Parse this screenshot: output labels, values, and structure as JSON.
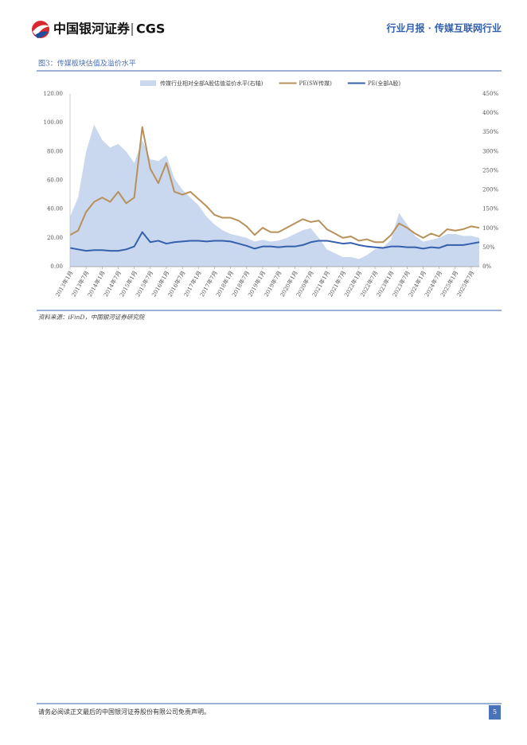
{
  "header": {
    "logo_cn": "中国银河证券",
    "logo_en": "CGS",
    "title": "行业月报 · 传媒互联网行业"
  },
  "figure": {
    "caption": "图3：传媒板块估值及溢价水平",
    "source": "资料来源：iFinD，中国银河证券研究院"
  },
  "chart_data": {
    "type": "line",
    "categories": [
      "2013年1月",
      null,
      "2013年7月",
      null,
      "2014年1月",
      null,
      "2014年7月",
      null,
      "2015年1月",
      null,
      "2015年7月",
      null,
      "2016年1月",
      null,
      "2016年7月",
      null,
      "2017年1月",
      null,
      "2017年7月",
      null,
      "2018年1月",
      null,
      "2018年7月",
      null,
      "2019年1月",
      null,
      "2019年7月",
      null,
      "2020年1月",
      null,
      "2020年7月",
      null,
      "2021年1月",
      null,
      "2021年7月",
      null,
      "2022年1月",
      null,
      "2022年7月",
      null,
      "2023年1月",
      null,
      "2023年7月",
      null,
      "2024年1月",
      null,
      "2024年7月",
      null,
      "2025年1月",
      null,
      "2025年7月",
      null
    ],
    "series": [
      {
        "name": "传媒行业相对全部A股估值溢价水平(右轴)",
        "color": "#c9d7ef",
        "axis": "y2",
        "kind": "area",
        "values": [
          130,
          180,
          300,
          370,
          330,
          310,
          320,
          300,
          270,
          330,
          280,
          275,
          290,
          230,
          200,
          180,
          160,
          130,
          110,
          95,
          85,
          80,
          75,
          65,
          70,
          65,
          68,
          75,
          85,
          95,
          100,
          75,
          45,
          35,
          25,
          25,
          20,
          30,
          45,
          50,
          70,
          140,
          110,
          80,
          65,
          70,
          75,
          85,
          85,
          80,
          80,
          75
        ]
      },
      {
        "name": "PE(SW传媒)",
        "color": "#b8915a",
        "values": [
          22,
          25,
          38,
          45,
          48,
          45,
          52,
          44,
          48,
          97,
          68,
          58,
          72,
          52,
          50,
          52,
          47,
          42,
          36,
          34,
          34,
          32,
          28,
          22,
          27,
          24,
          24,
          27,
          30,
          33,
          31,
          32,
          26,
          23,
          20,
          21,
          18,
          19,
          17,
          17,
          22,
          30,
          27,
          23,
          20,
          23,
          21,
          26,
          25,
          26,
          28,
          27
        ]
      },
      {
        "name": "PE(全部A股)",
        "color": "#3560ad",
        "values": [
          13,
          12,
          11,
          11.5,
          11.5,
          11,
          11,
          12,
          14,
          24,
          17,
          18,
          16,
          17,
          17.5,
          18,
          18,
          17.5,
          18,
          18,
          17.5,
          16,
          14.5,
          12.5,
          14,
          14,
          13.5,
          14,
          14,
          15,
          17,
          18,
          18,
          17,
          16,
          16.5,
          15,
          14,
          13.5,
          13,
          14,
          14,
          13.5,
          13.5,
          12.5,
          13.5,
          13,
          15,
          15,
          15,
          16,
          17
        ]
      }
    ],
    "ylim": [
      0,
      120
    ],
    "yticks": [
      {
        "value": 0,
        "label": "0.00"
      },
      {
        "value": 20,
        "label": "20.00"
      },
      {
        "value": 40,
        "label": "40.00"
      },
      {
        "value": 60,
        "label": "60.00"
      },
      {
        "value": 80,
        "label": "80.00"
      },
      {
        "value": 100,
        "label": "100.00"
      },
      {
        "value": 120,
        "label": "120.00"
      }
    ],
    "y2lim": [
      0,
      450
    ],
    "y2ticks": [
      {
        "value": 0,
        "label": "0%"
      },
      {
        "value": 50,
        "label": "50%"
      },
      {
        "value": 100,
        "label": "100%"
      },
      {
        "value": 150,
        "label": "150%"
      },
      {
        "value": 200,
        "label": "200%"
      },
      {
        "value": 250,
        "label": "250%"
      },
      {
        "value": 300,
        "label": "300%"
      },
      {
        "value": 350,
        "label": "350%"
      },
      {
        "value": 400,
        "label": "400%"
      },
      {
        "value": 450,
        "label": "450%"
      }
    ],
    "grid": false,
    "legend": "top"
  },
  "footer": {
    "disclaimer": "请务必阅读正文最后的中国银河证券股份有限公司免责声明。",
    "page": "5"
  }
}
